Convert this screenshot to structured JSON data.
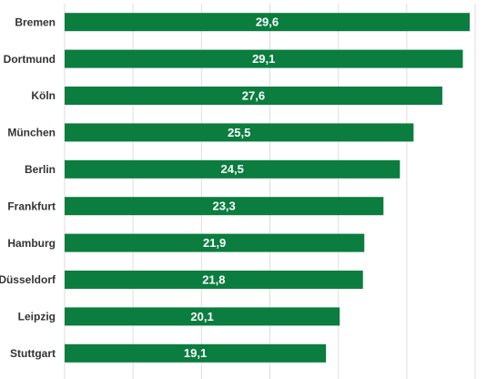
{
  "chart_data": {
    "type": "bar",
    "orientation": "horizontal",
    "categories": [
      "Bremen",
      "Dortmund",
      "Köln",
      "München",
      "Berlin",
      "Frankfurt",
      "Hamburg",
      "Düsseldorf",
      "Leipzig",
      "Stuttgart"
    ],
    "values": [
      29.6,
      29.1,
      27.6,
      25.5,
      24.5,
      23.3,
      21.9,
      21.8,
      20.1,
      19.1
    ],
    "value_labels": [
      "29,6",
      "29,1",
      "27,6",
      "25,5",
      "24,5",
      "23,3",
      "21,9",
      "21,8",
      "20,1",
      "19,1"
    ],
    "color": "#0a7d3f",
    "xlim": [
      0,
      30
    ],
    "xticks": [
      0,
      5,
      10,
      15,
      20,
      25,
      30
    ],
    "grid": true
  }
}
